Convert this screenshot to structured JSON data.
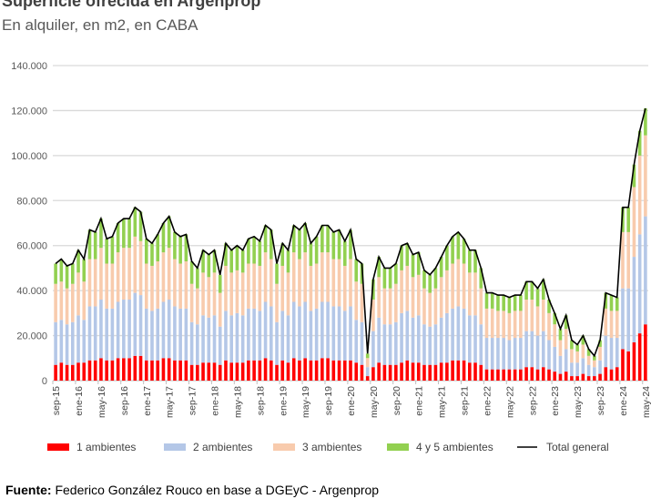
{
  "chart_data": {
    "type": "bar",
    "stacked": true,
    "title": "Superficie ofrecida en Argenprop",
    "subtitle": "En alquiler, en m2, en CABA",
    "xlabel": "",
    "ylabel": "",
    "ylim": [
      0,
      140000
    ],
    "yticks": [
      "0",
      "20.000",
      "40.000",
      "60.000",
      "80.000",
      "100.000",
      "120.000",
      "140.000"
    ],
    "ytick_values": [
      0,
      20000,
      40000,
      60000,
      80000,
      100000,
      120000,
      140000
    ],
    "grid": true,
    "legend_position": "bottom",
    "tick_every": 4,
    "categories": [
      "sep-15",
      "oct-15",
      "nov-15",
      "dic-15",
      "ene-16",
      "feb-16",
      "mar-16",
      "abr-16",
      "may-16",
      "jun-16",
      "jul-16",
      "ago-16",
      "sep-16",
      "oct-16",
      "nov-16",
      "dic-16",
      "ene-17",
      "feb-17",
      "mar-17",
      "abr-17",
      "may-17",
      "jun-17",
      "jul-17",
      "ago-17",
      "sep-17",
      "oct-17",
      "nov-17",
      "dic-17",
      "ene-18",
      "feb-18",
      "mar-18",
      "abr-18",
      "may-18",
      "jun-18",
      "jul-18",
      "ago-18",
      "sep-18",
      "oct-18",
      "nov-18",
      "dic-18",
      "ene-19",
      "feb-19",
      "mar-19",
      "abr-19",
      "may-19",
      "jun-19",
      "jul-19",
      "ago-19",
      "sep-19",
      "oct-19",
      "nov-19",
      "dic-19",
      "ene-20",
      "feb-20",
      "mar-20",
      "abr-20",
      "may-20",
      "jun-20",
      "jul-20",
      "ago-20",
      "sep-20",
      "oct-20",
      "nov-20",
      "dic-20",
      "ene-21",
      "feb-21",
      "mar-21",
      "abr-21",
      "may-21",
      "jun-21",
      "jul-21",
      "ago-21",
      "sep-21",
      "oct-21",
      "nov-21",
      "dic-21",
      "ene-22",
      "feb-22",
      "mar-22",
      "abr-22",
      "may-22",
      "jun-22",
      "jul-22",
      "ago-22",
      "sep-22",
      "oct-22",
      "nov-22",
      "dic-22",
      "ene-23",
      "feb-23",
      "mar-23",
      "abr-23",
      "may-23",
      "jun-23",
      "jul-23",
      "ago-23",
      "sep-23",
      "oct-23",
      "nov-23",
      "dic-23",
      "ene-24",
      "feb-24",
      "mar-24",
      "abr-24",
      "may-24"
    ],
    "series": [
      {
        "name": "1 ambientes",
        "color": "#ff0000",
        "values": [
          7000,
          8000,
          7000,
          7000,
          8000,
          8000,
          9000,
          9000,
          10000,
          9000,
          9000,
          10000,
          10000,
          10000,
          11000,
          11000,
          9000,
          9000,
          9000,
          10000,
          10000,
          9000,
          9000,
          9000,
          7000,
          7000,
          8000,
          8000,
          8000,
          7000,
          9000,
          8000,
          8000,
          8000,
          9000,
          9000,
          9000,
          10000,
          9000,
          7000,
          9000,
          8000,
          10000,
          9000,
          10000,
          9000,
          9000,
          10000,
          10000,
          9000,
          9000,
          9000,
          9000,
          8000,
          7000,
          2000,
          6000,
          8000,
          7000,
          7000,
          7000,
          8000,
          9000,
          8000,
          8000,
          7000,
          7000,
          7000,
          8000,
          8000,
          9000,
          9000,
          9000,
          8000,
          8000,
          7000,
          5000,
          5000,
          5000,
          5000,
          5000,
          5000,
          5000,
          6000,
          6000,
          5000,
          6000,
          5000,
          4000,
          3000,
          4000,
          2000,
          2000,
          3000,
          2000,
          2000,
          3000,
          6000,
          5000,
          6000,
          14000,
          13000,
          17000,
          21000,
          25000
        ]
      },
      {
        "name": "2 ambientes",
        "color": "#b4c7e7",
        "values": [
          19000,
          19000,
          18000,
          19000,
          21000,
          19000,
          24000,
          24000,
          26000,
          23000,
          23000,
          25000,
          26000,
          26000,
          28000,
          27000,
          23000,
          22000,
          23000,
          25000,
          26000,
          24000,
          23000,
          23000,
          19000,
          18000,
          21000,
          20000,
          21000,
          17000,
          22000,
          21000,
          22000,
          21000,
          23000,
          23000,
          22000,
          25000,
          24000,
          19000,
          22000,
          21000,
          25000,
          24000,
          25000,
          22000,
          23000,
          25000,
          25000,
          24000,
          24000,
          22000,
          24000,
          19000,
          19000,
          4000,
          16000,
          20000,
          18000,
          18000,
          19000,
          22000,
          22000,
          20000,
          21000,
          18000,
          17000,
          18000,
          20000,
          22000,
          23000,
          24000,
          23000,
          21000,
          21000,
          18000,
          14000,
          14000,
          14000,
          14000,
          13000,
          14000,
          14000,
          16000,
          16000,
          15000,
          16000,
          13000,
          11000,
          8000,
          10000,
          6000,
          6000,
          7000,
          5000,
          4000,
          6000,
          14000,
          14000,
          13000,
          27000,
          28000,
          38000,
          44000,
          48000
        ]
      },
      {
        "name": "3 ambientes",
        "color": "#f8cbad",
        "values": [
          17000,
          17000,
          16000,
          17000,
          19000,
          17000,
          21000,
          21000,
          23000,
          20000,
          20000,
          22000,
          23000,
          23000,
          25000,
          24000,
          20000,
          20000,
          21000,
          22000,
          23000,
          21000,
          20000,
          21000,
          17000,
          16000,
          19000,
          18000,
          19000,
          15000,
          20000,
          19000,
          19000,
          19000,
          20000,
          20000,
          20000,
          22000,
          21000,
          17000,
          20000,
          19000,
          22000,
          21000,
          22000,
          20000,
          20000,
          22000,
          22000,
          21000,
          21000,
          20000,
          21000,
          17000,
          17000,
          4000,
          14000,
          18000,
          16000,
          16000,
          17000,
          19000,
          20000,
          18000,
          18000,
          16000,
          15000,
          16000,
          18000,
          19000,
          20000,
          21000,
          20000,
          19000,
          19000,
          16000,
          13000,
          13000,
          12000,
          12000,
          12000,
          12000,
          12000,
          14000,
          14000,
          13000,
          14000,
          12000,
          10000,
          7000,
          9000,
          6000,
          5000,
          6000,
          4000,
          3000,
          6000,
          12000,
          12000,
          12000,
          25000,
          25000,
          31000,
          35000,
          36000
        ]
      },
      {
        "name": "4 y 5 ambientes",
        "color": "#92d050",
        "values": [
          9000,
          10000,
          10000,
          9000,
          10000,
          10000,
          13000,
          12000,
          13000,
          11000,
          12000,
          13000,
          13000,
          13000,
          13000,
          13000,
          11000,
          10000,
          12000,
          13000,
          14000,
          12000,
          12000,
          12000,
          10000,
          9000,
          10000,
          10000,
          10000,
          8000,
          10000,
          10000,
          11000,
          10000,
          11000,
          12000,
          11000,
          12000,
          13000,
          9000,
          10000,
          10000,
          12000,
          13000,
          13000,
          10000,
          12000,
          12000,
          12000,
          12000,
          13000,
          11000,
          13000,
          10000,
          9000,
          2000,
          9000,
          9000,
          9000,
          9000,
          9000,
          11000,
          10000,
          10000,
          10000,
          8000,
          8000,
          9000,
          9000,
          11000,
          12000,
          12000,
          11000,
          10000,
          10000,
          9000,
          7000,
          7000,
          7000,
          7000,
          7000,
          7000,
          7000,
          8000,
          8000,
          8000,
          9000,
          6000,
          5000,
          5000,
          6000,
          4000,
          3000,
          4000,
          3000,
          2000,
          3000,
          7000,
          7000,
          6000,
          11000,
          11000,
          10000,
          11000,
          12000
        ]
      }
    ],
    "line": {
      "name": "Total general",
      "color": "#000000",
      "values": [
        52000,
        54000,
        51000,
        52000,
        58000,
        54000,
        67000,
        66000,
        72000,
        63000,
        64000,
        70000,
        72000,
        72000,
        77000,
        75000,
        63000,
        61000,
        65000,
        70000,
        73000,
        66000,
        64000,
        65000,
        53000,
        50000,
        58000,
        56000,
        58000,
        47000,
        61000,
        58000,
        60000,
        58000,
        63000,
        64000,
        62000,
        69000,
        67000,
        52000,
        61000,
        58000,
        69000,
        67000,
        70000,
        61000,
        64000,
        69000,
        69000,
        66000,
        67000,
        62000,
        67000,
        54000,
        52000,
        12000,
        45000,
        55000,
        50000,
        50000,
        52000,
        60000,
        61000,
        56000,
        57000,
        49000,
        47000,
        50000,
        55000,
        60000,
        64000,
        66000,
        63000,
        58000,
        58000,
        50000,
        39000,
        39000,
        38000,
        38000,
        37000,
        38000,
        38000,
        44000,
        44000,
        41000,
        45000,
        36000,
        30000,
        23000,
        29000,
        18000,
        16000,
        20000,
        14000,
        11000,
        18000,
        39000,
        38000,
        37000,
        77000,
        77000,
        96000,
        111000,
        121000
      ]
    }
  },
  "source": {
    "label": "Fuente:",
    "text": " Federico González Rouco en base a DGEyC - Argenprop"
  }
}
